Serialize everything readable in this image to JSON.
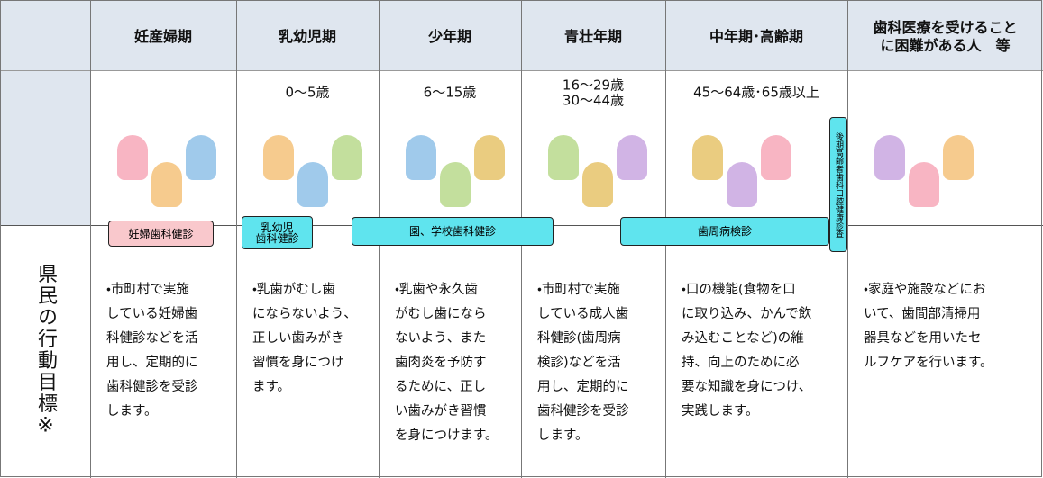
{
  "side_label": "県民の行動目標※",
  "header": {
    "columns": [
      [
        "妊産婦期"
      ],
      [
        "乳幼児期"
      ],
      [
        "少年期"
      ],
      [
        "青壮年期"
      ],
      [
        "中年期･高齢期"
      ],
      [
        "歯科医療を受けること",
        "に困難がある人　等"
      ]
    ]
  },
  "ages": [
    [
      "0～5歳"
    ],
    [
      "6～15歳"
    ],
    [
      "16～29歳",
      "30～44歳"
    ],
    [
      "45～64歳･65歳以上"
    ]
  ],
  "checkups": [
    [
      "妊婦歯科健診"
    ],
    [
      "乳幼児",
      "歯科健診"
    ],
    [
      "園、学校歯科健診"
    ],
    [
      "歯周病検診"
    ],
    [
      "後期高齢者歯科口腔健康診査"
    ]
  ],
  "actions": [
    [
      "・市町村で実施",
      "している妊婦歯",
      "科健診などを活",
      "用し、定期的に",
      "歯科健診を受診",
      "します。"
    ],
    [
      "・乳歯がむし歯",
      "にならないよう、",
      "正しい歯みがき",
      "習慣を身につけ",
      "ます。"
    ],
    [
      "・乳歯や永久歯",
      "がむし歯になら",
      "ないよう、また",
      "歯肉炎を予防す",
      "るために、正し",
      "い歯みがき習慣",
      "を身につけます。"
    ],
    [
      "・市町村で実施",
      "している成人歯",
      "科健診(歯周病",
      "検診)などを活",
      "用し、定期的に",
      "歯科健診を受診",
      "します。"
    ],
    [
      "・口の機能(食物を口",
      "に取り込み、かんで飲",
      "み込むことなど)の維",
      "持、向上のために必",
      "要な知識を身につけ、",
      "実践します。"
    ],
    [
      "・家庭や施設などにお",
      "いて、歯間部清掃用",
      "器具などを用いたセ",
      "ルフケアを行います。"
    ]
  ]
}
